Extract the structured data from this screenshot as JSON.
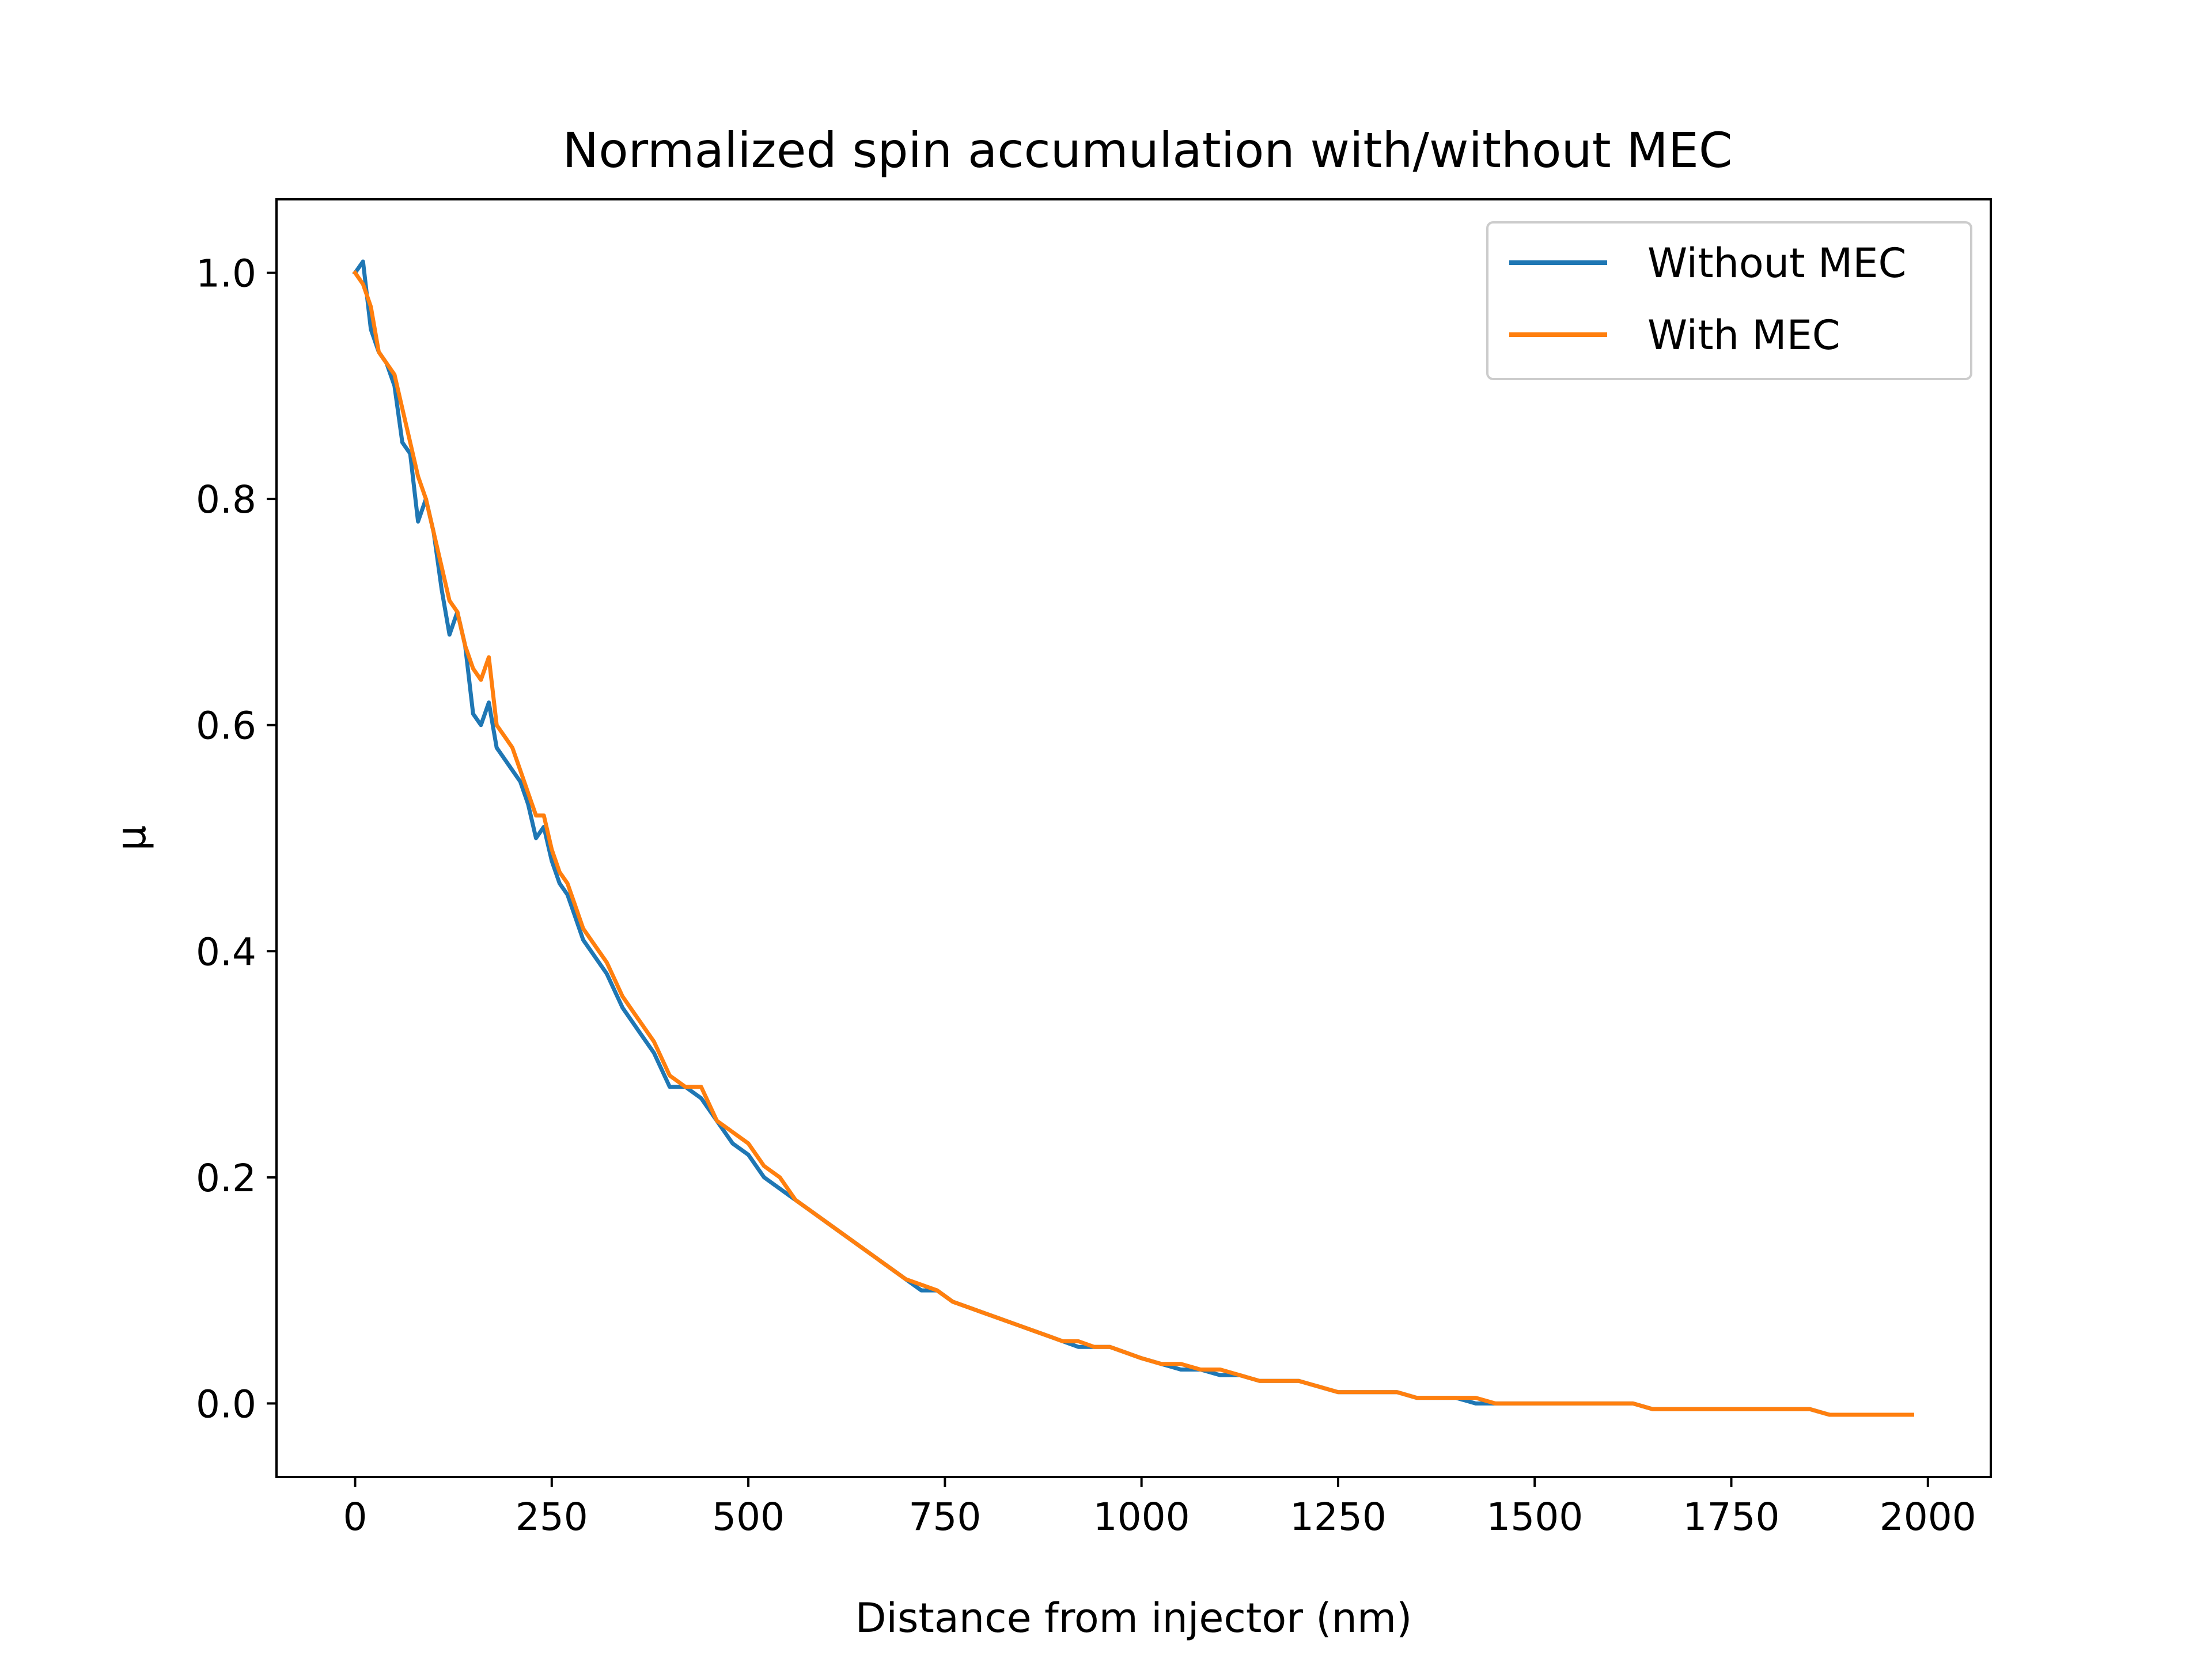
{
  "chart_data": {
    "type": "line",
    "title": "Normalized spin accumulation with/without MEC",
    "xlabel": "Distance from injector (nm)",
    "ylabel": "μ",
    "xlim": [
      -100,
      2080
    ],
    "ylim": [
      -0.065,
      1.065
    ],
    "x_ticks": [
      0,
      250,
      500,
      750,
      1000,
      1250,
      1500,
      1750,
      2000
    ],
    "y_ticks": [
      0.0,
      0.2,
      0.4,
      0.6,
      0.8,
      1.0
    ],
    "grid": false,
    "legend_position": "top-right",
    "series": [
      {
        "name": "Without MEC",
        "color": "#1f77b4",
        "x": [
          0,
          10,
          20,
          30,
          40,
          50,
          60,
          70,
          80,
          90,
          100,
          110,
          120,
          130,
          140,
          150,
          160,
          170,
          180,
          190,
          200,
          210,
          220,
          230,
          240,
          250,
          260,
          270,
          280,
          290,
          300,
          320,
          340,
          360,
          380,
          400,
          420,
          440,
          460,
          480,
          500,
          520,
          540,
          560,
          580,
          600,
          620,
          640,
          660,
          680,
          700,
          720,
          740,
          760,
          780,
          800,
          820,
          840,
          860,
          880,
          900,
          920,
          940,
          960,
          980,
          1000,
          1025,
          1050,
          1075,
          1100,
          1125,
          1150,
          1175,
          1200,
          1225,
          1250,
          1275,
          1300,
          1325,
          1350,
          1375,
          1400,
          1425,
          1450,
          1475,
          1500,
          1525,
          1550,
          1575,
          1600,
          1625,
          1650,
          1675,
          1700,
          1725,
          1750,
          1775,
          1800,
          1825,
          1850,
          1875,
          1900,
          1925,
          1950,
          1980
        ],
        "values": [
          1.0,
          1.01,
          0.95,
          0.93,
          0.92,
          0.9,
          0.85,
          0.84,
          0.78,
          0.8,
          0.77,
          0.72,
          0.68,
          0.7,
          0.67,
          0.61,
          0.6,
          0.62,
          0.58,
          0.57,
          0.56,
          0.55,
          0.53,
          0.5,
          0.51,
          0.48,
          0.46,
          0.45,
          0.43,
          0.41,
          0.4,
          0.38,
          0.35,
          0.33,
          0.31,
          0.28,
          0.28,
          0.27,
          0.25,
          0.23,
          0.22,
          0.2,
          0.19,
          0.18,
          0.17,
          0.16,
          0.15,
          0.14,
          0.13,
          0.12,
          0.11,
          0.1,
          0.1,
          0.09,
          0.085,
          0.08,
          0.075,
          0.07,
          0.065,
          0.06,
          0.055,
          0.05,
          0.05,
          0.05,
          0.045,
          0.04,
          0.035,
          0.03,
          0.03,
          0.025,
          0.025,
          0.02,
          0.02,
          0.02,
          0.015,
          0.01,
          0.01,
          0.01,
          0.01,
          0.005,
          0.005,
          0.005,
          0.0,
          0.0,
          0.0,
          0.0,
          0.0,
          0.0,
          0.0,
          0.0,
          0.0,
          -0.005,
          -0.005,
          -0.005,
          -0.005,
          -0.005,
          -0.005,
          -0.005,
          -0.005,
          -0.005,
          -0.01,
          -0.01,
          -0.01,
          -0.01,
          -0.01
        ]
      },
      {
        "name": "With MEC",
        "color": "#ff7f0e",
        "x": [
          0,
          10,
          20,
          30,
          40,
          50,
          60,
          70,
          80,
          90,
          100,
          110,
          120,
          130,
          140,
          150,
          160,
          170,
          180,
          190,
          200,
          210,
          220,
          230,
          240,
          250,
          260,
          270,
          280,
          290,
          300,
          320,
          340,
          360,
          380,
          400,
          420,
          440,
          460,
          480,
          500,
          520,
          540,
          560,
          580,
          600,
          620,
          640,
          660,
          680,
          700,
          720,
          740,
          760,
          780,
          800,
          820,
          840,
          860,
          880,
          900,
          920,
          940,
          960,
          980,
          1000,
          1025,
          1050,
          1075,
          1100,
          1125,
          1150,
          1175,
          1200,
          1225,
          1250,
          1275,
          1300,
          1325,
          1350,
          1375,
          1400,
          1425,
          1450,
          1475,
          1500,
          1525,
          1550,
          1575,
          1600,
          1625,
          1650,
          1675,
          1700,
          1725,
          1750,
          1775,
          1800,
          1825,
          1850,
          1875,
          1900,
          1925,
          1950,
          1980
        ],
        "values": [
          1.0,
          0.99,
          0.97,
          0.93,
          0.92,
          0.91,
          0.88,
          0.85,
          0.82,
          0.8,
          0.77,
          0.74,
          0.71,
          0.7,
          0.67,
          0.65,
          0.64,
          0.66,
          0.6,
          0.59,
          0.58,
          0.56,
          0.54,
          0.52,
          0.52,
          0.49,
          0.47,
          0.46,
          0.44,
          0.42,
          0.41,
          0.39,
          0.36,
          0.34,
          0.32,
          0.29,
          0.28,
          0.28,
          0.25,
          0.24,
          0.23,
          0.21,
          0.2,
          0.18,
          0.17,
          0.16,
          0.15,
          0.14,
          0.13,
          0.12,
          0.11,
          0.105,
          0.1,
          0.09,
          0.085,
          0.08,
          0.075,
          0.07,
          0.065,
          0.06,
          0.055,
          0.055,
          0.05,
          0.05,
          0.045,
          0.04,
          0.035,
          0.035,
          0.03,
          0.03,
          0.025,
          0.02,
          0.02,
          0.02,
          0.015,
          0.01,
          0.01,
          0.01,
          0.01,
          0.005,
          0.005,
          0.005,
          0.005,
          0.0,
          0.0,
          0.0,
          0.0,
          0.0,
          0.0,
          0.0,
          0.0,
          -0.005,
          -0.005,
          -0.005,
          -0.005,
          -0.005,
          -0.005,
          -0.005,
          -0.005,
          -0.005,
          -0.01,
          -0.01,
          -0.01,
          -0.01,
          -0.01
        ]
      }
    ]
  }
}
